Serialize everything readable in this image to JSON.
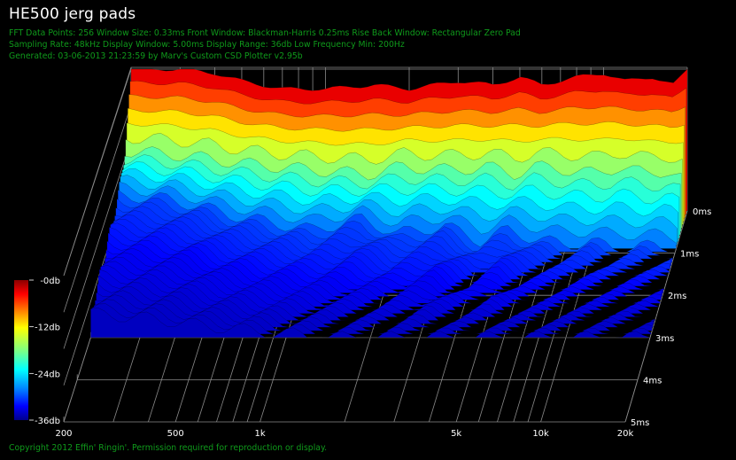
{
  "title": "HE500 jerg pads",
  "info_lines": [
    "FFT Data Points: 256   Window Size: 0.33ms    Front Window: Blackman-Harris 0.25ms Rise    Back Window: Rectangular Zero Pad",
    "Sampling Rate: 48kHz   Display Window: 5.00ms    Display Range: 36db   Low Frequency Min: 200Hz",
    "Generated: 03-06-2013 21:23:59 by Marv's Custom CSD Plotter v2.95b"
  ],
  "copyright": "Copyright 2012 Effin' Ringin'. Permission required for reproduction or display.",
  "colors": {
    "background": "#000000",
    "title": "#ffffff",
    "info_text": "#0f9a1b",
    "grid": "#8a8a8a",
    "axis_text": "#ffffff"
  },
  "chart_data": {
    "type": "waterfall",
    "x_axis": {
      "scale": "log",
      "range": [
        200,
        20000
      ],
      "tick_labels": [
        "200",
        "500",
        "1k",
        "5k",
        "10k",
        "20k"
      ],
      "tick_values": [
        200,
        500,
        1000,
        5000,
        10000,
        20000
      ]
    },
    "time_axis": {
      "range": [
        0,
        5
      ],
      "tick_labels": [
        "0ms",
        "1ms",
        "2ms",
        "3ms",
        "4ms",
        "5ms"
      ],
      "tick_values": [
        0,
        1,
        2,
        3,
        4,
        5
      ]
    },
    "colorbar": {
      "range": [
        -36,
        0
      ],
      "tick_labels": [
        "-0db",
        "-12db",
        "-24db",
        "-36db"
      ],
      "tick_values": [
        0,
        -12,
        -24,
        -36
      ],
      "colormap": "jet"
    },
    "slices": [
      {
        "time_ms": 0.0,
        "freq": [
          200,
          300,
          400,
          500,
          700,
          1000,
          1500,
          2000,
          3000,
          4000,
          5000,
          6000,
          8000,
          10000,
          12000,
          15000,
          18000,
          20000
        ],
        "db": [
          0,
          0,
          -1,
          -3,
          -5,
          -5,
          -4,
          -5,
          -3,
          -4,
          -2,
          -4,
          -2,
          -1,
          -3,
          -2,
          -4,
          0
        ]
      },
      {
        "time_ms": 0.5,
        "freq": [
          200,
          300,
          400,
          500,
          700,
          1000,
          1500,
          2000,
          3000,
          4000,
          5000,
          6000,
          8000,
          10000,
          12000,
          15000,
          18000,
          20000
        ],
        "db": [
          -16,
          -17,
          -18,
          -19,
          -20,
          -21,
          -22,
          -20,
          -21,
          -20,
          -22,
          -20,
          -21,
          -22,
          -20,
          -22,
          -21,
          -23
        ]
      },
      {
        "time_ms": 1.0,
        "freq": [
          200,
          300,
          400,
          500,
          700,
          1000,
          1500,
          2000,
          3000,
          4000,
          5000,
          6000,
          8000,
          10000,
          12000,
          15000,
          18000,
          20000
        ],
        "db": [
          -22,
          -23,
          -25,
          -27,
          -29,
          -31,
          -28,
          -32,
          -30,
          -34,
          -31,
          -33,
          -35,
          -34,
          -36,
          -35,
          -36,
          -36
        ]
      },
      {
        "time_ms": 2.0,
        "freq": [
          200,
          300,
          400,
          500,
          700,
          1000,
          1500,
          2000,
          3000,
          4000,
          5000,
          6000,
          8000,
          10000,
          12000,
          15000,
          18000,
          20000
        ],
        "db": [
          -26,
          -27,
          -28,
          -30,
          -32,
          -33,
          -34,
          -35,
          -33,
          -36,
          -34,
          -36,
          -36,
          -36,
          -36,
          -36,
          -36,
          -36
        ]
      },
      {
        "time_ms": 3.0,
        "freq": [
          200,
          300,
          400,
          500,
          700,
          1000,
          1500,
          2000,
          3000,
          4000,
          5000,
          6000,
          8000,
          10000,
          12000,
          15000,
          18000,
          20000
        ],
        "db": [
          -30,
          -31,
          -32,
          -33,
          -34,
          -35,
          -36,
          -36,
          -36,
          -36,
          -36,
          -36,
          -36,
          -36,
          -36,
          -36,
          -36,
          -36
        ]
      }
    ]
  }
}
